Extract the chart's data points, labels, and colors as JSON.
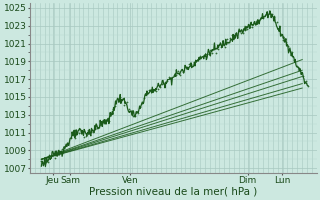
{
  "title": "",
  "xlabel": "Pression niveau de la mer( hPa )",
  "ylabel": "",
  "bg_color": "#cce8e0",
  "grid_color_major": "#a8c8c0",
  "grid_color_minor": "#b8d8d0",
  "line_color": "#1a5a1a",
  "ylim": [
    1006.5,
    1025.5
  ],
  "yticks": [
    1007,
    1009,
    1011,
    1013,
    1015,
    1017,
    1019,
    1021,
    1023,
    1025
  ],
  "font_size": 6.5,
  "xlabel_fontsize": 7.5,
  "xtick_labels_pos": [
    0.08,
    0.14,
    0.35,
    0.76,
    0.88
  ],
  "xtick_labels": [
    "Jeu",
    "Sam",
    "Ven",
    "Dim",
    "Lun"
  ],
  "xlim": [
    0,
    1.0
  ],
  "forecast_lines": [
    {
      "x0": 0.04,
      "y0": 1008.0,
      "x1": 0.95,
      "y1": 1019.2
    },
    {
      "x0": 0.04,
      "y0": 1008.0,
      "x1": 0.95,
      "y1": 1018.0
    },
    {
      "x0": 0.04,
      "y0": 1008.0,
      "x1": 0.95,
      "y1": 1017.3
    },
    {
      "x0": 0.04,
      "y0": 1008.0,
      "x1": 0.95,
      "y1": 1016.5
    },
    {
      "x0": 0.04,
      "y0": 1008.0,
      "x1": 0.95,
      "y1": 1016.0
    }
  ]
}
